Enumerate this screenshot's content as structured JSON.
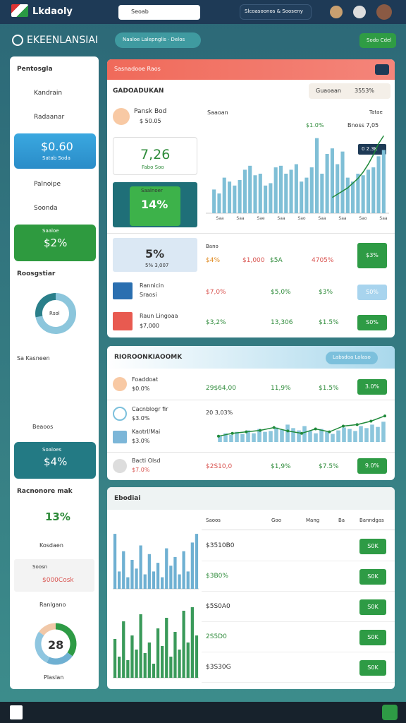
{
  "header": {
    "logo": "Lkdaoly",
    "search": "Seoab",
    "user_menu": "Slcoasoonos & Sooseny"
  },
  "toolbar": {
    "title": "EKEENLANSIAI",
    "tabs": "Naaloe Lalepnglis · Delos",
    "button": "Sodo Cdel"
  },
  "sidebar": {
    "title": "Pentosgla",
    "items": [
      "Kandrain",
      "Radaanar"
    ],
    "card1": {
      "value": "$0.60",
      "label": "Satab Soda"
    },
    "items2": [
      "Palnoipe",
      "Soonda"
    ],
    "card2": {
      "label": "Saaloe",
      "value": "$2%"
    },
    "section1": "Roosgstiar",
    "donut1": {
      "label": "Rsol",
      "values": [
        72,
        28
      ]
    },
    "item3": "Sa Kasneen",
    "item4": "Beaoos",
    "card3": {
      "label": "Soaloes",
      "value": "$4%"
    },
    "section2": "Racnonore mak",
    "stat": "13%",
    "item5": "Kosdaen",
    "item6": {
      "label": "Soosn",
      "value": "$000Cosk"
    },
    "item7": "Ranlgano",
    "donut2": {
      "value": "28",
      "label": "Plaslan",
      "values": [
        35,
        22,
        28,
        15
      ]
    }
  },
  "panel_a": {
    "header": "Sasnadooe Raos",
    "title": "GADOADUKAN",
    "badge_label": "Guaoaan",
    "badge_value": "3553%",
    "profile": {
      "name": "Pansk Bod",
      "value": "$ 50.05"
    },
    "kpi": {
      "value": "7,26",
      "label": "Fabo Soo"
    },
    "promo": {
      "label": "Saalnoer",
      "value": "14%"
    },
    "chart": {
      "title": "Saaoan",
      "right": "Tatae",
      "peak_label": "$1.0%",
      "marker_label": "Bnoss 7,05",
      "callout": "0 2.3K",
      "ylim": [
        0,
        100
      ],
      "x_labels": [
        "Saa",
        "Saa",
        "Sae",
        "Saa",
        "Sao",
        "Saa",
        "Saa",
        "Sao",
        "Saa"
      ],
      "bars": [
        30,
        25,
        45,
        40,
        35,
        42,
        55,
        60,
        48,
        50,
        35,
        38,
        58,
        60,
        50,
        55,
        62,
        40,
        45,
        58,
        95,
        50,
        75,
        82,
        62,
        78,
        45,
        40,
        50,
        48,
        55,
        58,
        72,
        80
      ],
      "line": [
        null,
        null,
        null,
        null,
        null,
        null,
        null,
        null,
        null,
        null,
        null,
        null,
        null,
        null,
        null,
        null,
        null,
        null,
        null,
        null,
        null,
        null,
        null,
        20,
        24,
        28,
        32,
        38,
        44,
        52,
        62,
        74,
        88,
        98
      ]
    },
    "summary": {
      "value": "5%",
      "sub": "5% 3,007",
      "label": "Bano",
      "items": [
        "$4%",
        "$1,000",
        "$5A",
        "4705%"
      ],
      "button": "$3%"
    },
    "rows": [
      {
        "name": "Rannicin",
        "sub": "Sraosi",
        "v1": "$7,0%",
        "v2": "$5,0%",
        "v3": "$3%",
        "button": "S0%"
      },
      {
        "name": "Raun Lingoaa",
        "sub": "$7,000",
        "v1": "$3,2%",
        "v2": "13,306",
        "v3": "$1.5%",
        "button": "S0%"
      }
    ]
  },
  "panel_b": {
    "header": "RIOROONKIAOOMK",
    "pill": "Labsdoa Lolaso",
    "row1": {
      "name": "Foaddoat",
      "sub": "$0.0%",
      "v1": "29$64,00",
      "v2": "11,9%",
      "v3": "$1.5%",
      "button": "3.0%"
    },
    "items": [
      {
        "name": "Cacnblogr fir",
        "sub": "$3.0%"
      },
      {
        "name": "Kaotrl/Mai",
        "sub": "$3.0%"
      }
    ],
    "chart": {
      "label": "20 3,03%",
      "ylim": [
        0,
        100
      ],
      "bars": [
        20,
        30,
        25,
        35,
        28,
        40,
        30,
        45,
        35,
        38,
        50,
        42,
        60,
        48,
        40,
        55,
        38,
        30,
        45,
        35,
        28,
        40,
        50,
        45,
        38,
        55,
        48,
        60,
        52,
        70
      ],
      "line": [
        20,
        30,
        35,
        40,
        50,
        38,
        30,
        45,
        35,
        55,
        60,
        72,
        90
      ]
    },
    "row2": {
      "name": "Bacti Olsd",
      "sub": "$7.0%",
      "v1": "$2S10,0",
      "v2": "$1,9%",
      "v3": "$7.5%",
      "button": "9.0%"
    }
  },
  "panel_c": {
    "header": "Ebodiai",
    "columns": [
      "Saoos",
      "Goo",
      "Mang",
      "Ba",
      "Banndgas"
    ],
    "cells": [
      "$3510B0",
      "$3B0%",
      "$5S0A0",
      "2S5D0",
      "$3S30G"
    ],
    "button": "S0K",
    "chart1": {
      "ylim": [
        0,
        100
      ],
      "bars": [
        95,
        30,
        65,
        20,
        50,
        35,
        75,
        25,
        60,
        30,
        45,
        20,
        70,
        40,
        55,
        25,
        65,
        30,
        80,
        95
      ]
    },
    "chart2": {
      "ylim": [
        0,
        100
      ],
      "bars": [
        55,
        30,
        80,
        25,
        60,
        40,
        90,
        35,
        50,
        20,
        70,
        45,
        85,
        30,
        65,
        40,
        95,
        50,
        100,
        60
      ]
    }
  }
}
